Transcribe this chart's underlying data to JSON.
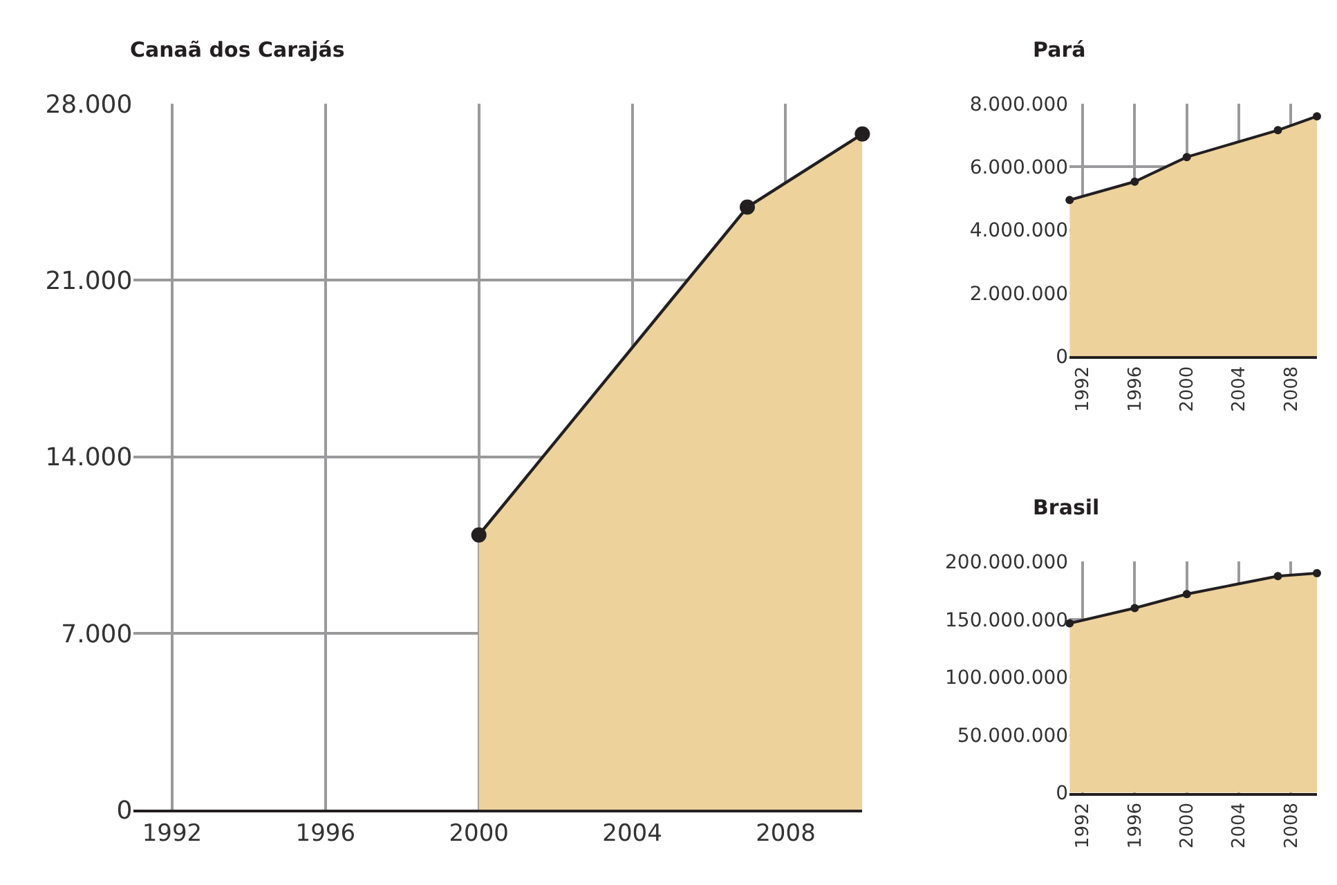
{
  "chart_data": [
    {
      "type": "area",
      "title": "Canaã dos Carajás",
      "x": [
        2000,
        2007,
        2010
      ],
      "series": [
        {
          "color": "#edd29c",
          "values": [
            10900,
            23900,
            26800
          ]
        }
      ],
      "xlim": [
        1991,
        2010
      ],
      "xticks": [
        1992,
        1996,
        2000,
        2004,
        2008
      ],
      "ylim": [
        0,
        28000
      ],
      "yticks": [
        0,
        {
          "value": 7000,
          "label": "7.000"
        },
        {
          "value": 14000,
          "label": "14.000"
        },
        {
          "value": 21000,
          "label": "21.000"
        },
        {
          "value": 28000,
          "label": "28.000"
        }
      ],
      "grid": true,
      "marker": "circle"
    },
    {
      "type": "area",
      "title": "Pará",
      "x": [
        1991,
        1996,
        2000,
        2007,
        2010
      ],
      "series": [
        {
          "color": "#edd29c",
          "values": [
            4950000,
            5530000,
            6310000,
            7160000,
            7600000
          ]
        }
      ],
      "xlim": [
        1991,
        2010
      ],
      "xticks": [
        1992,
        1996,
        2000,
        2004,
        2008
      ],
      "ylim": [
        0,
        8000000
      ],
      "yticks": [
        0,
        {
          "value": 2000000,
          "label": "2.000.000"
        },
        {
          "value": 4000000,
          "label": "4.000.000"
        },
        {
          "value": 6000000,
          "label": "6.000.000"
        },
        {
          "value": 8000000,
          "label": "8.000.000"
        }
      ],
      "grid": true,
      "marker": "circle"
    },
    {
      "type": "area",
      "title": "Brasil",
      "x": [
        1991,
        1996,
        2000,
        2007,
        2010
      ],
      "series": [
        {
          "color": "#edd29c",
          "values": [
            146600000,
            159800000,
            171900000,
            187500000,
            190000000
          ]
        }
      ],
      "xlim": [
        1991,
        2010
      ],
      "xticks": [
        1992,
        1996,
        2000,
        2004,
        2008
      ],
      "ylim": [
        0,
        200000000
      ],
      "yticks": [
        0,
        {
          "value": 50000000,
          "label": "50.000.000"
        },
        {
          "value": 100000000,
          "label": "100.000.000"
        },
        {
          "value": 150000000,
          "label": "150.000.000"
        },
        {
          "value": 200000000,
          "label": "200.000.000"
        }
      ],
      "grid": true,
      "marker": "circle"
    }
  ]
}
